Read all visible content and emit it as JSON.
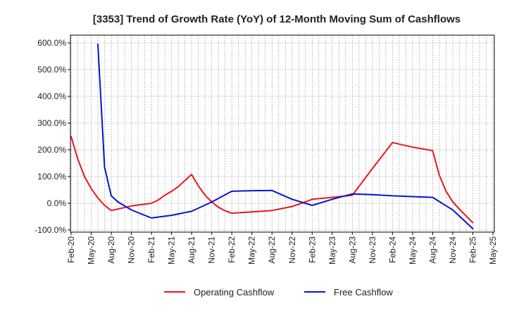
{
  "chart_data": {
    "type": "line",
    "title": "[3353]  Trend of Growth Rate (YoY) of 12-Month Moving Sum of Cashflows",
    "y_tick_labels": [
      "600.0%",
      "500.0%",
      "400.0%",
      "300.0%",
      "200.0%",
      "100.0%",
      "0.0%",
      "-100.0%"
    ],
    "x_tick_labels": [
      "Feb-20",
      "May-20",
      "Aug-20",
      "Nov-20",
      "Feb-21",
      "May-21",
      "Aug-21",
      "Nov-21",
      "Feb-22",
      "May-22",
      "Aug-22",
      "Nov-22",
      "Feb-23",
      "May-23",
      "Aug-23",
      "Nov-23",
      "Feb-24",
      "May-24",
      "Aug-24",
      "Nov-24",
      "Feb-25",
      "May-25"
    ],
    "ylim": [
      -100,
      600
    ],
    "grid": true,
    "legend_position": "bottom",
    "series": [
      {
        "name": "Operating Cashflow",
        "color": "#e8161b",
        "points": [
          [
            "Feb-20",
            250
          ],
          [
            "Mar-20",
            165
          ],
          [
            "Apr-20",
            100
          ],
          [
            "May-20",
            55
          ],
          [
            "Jun-20",
            20
          ],
          [
            "Jul-20",
            -8
          ],
          [
            "Aug-20",
            -27
          ],
          [
            "Nov-20",
            -10
          ],
          [
            "Feb-21",
            0
          ],
          [
            "Mar-21",
            12
          ],
          [
            "Apr-21",
            30
          ],
          [
            "May-21",
            45
          ],
          [
            "Jun-21",
            62
          ],
          [
            "Jul-21",
            85
          ],
          [
            "Aug-21",
            108
          ],
          [
            "Sep-21",
            65
          ],
          [
            "Oct-21",
            30
          ],
          [
            "Nov-21",
            5
          ],
          [
            "Dec-21",
            -15
          ],
          [
            "Jan-22",
            -28
          ],
          [
            "Feb-22",
            -37
          ],
          [
            "May-22",
            -32
          ],
          [
            "Aug-22",
            -27
          ],
          [
            "Nov-22",
            -12
          ],
          [
            "Jan-23",
            5
          ],
          [
            "Feb-23",
            15
          ],
          [
            "May-23",
            22
          ],
          [
            "Aug-23",
            30
          ],
          [
            "Nov-23",
            130
          ],
          [
            "Feb-24",
            227
          ],
          [
            "May-24",
            210
          ],
          [
            "Aug-24",
            197
          ],
          [
            "Sep-24",
            105
          ],
          [
            "Oct-24",
            45
          ],
          [
            "Nov-24",
            5
          ],
          [
            "Dec-24",
            -22
          ],
          [
            "Jan-25",
            -48
          ],
          [
            "Feb-25",
            -73
          ]
        ]
      },
      {
        "name": "Free Cashflow",
        "color": "#0a14cc",
        "points": [
          [
            "Jun-20",
            595
          ],
          [
            "Jul-20",
            135
          ],
          [
            "Aug-20",
            28
          ],
          [
            "Sep-20",
            5
          ],
          [
            "Nov-20",
            -25
          ],
          [
            "Feb-21",
            -55
          ],
          [
            "May-21",
            -45
          ],
          [
            "Aug-21",
            -30
          ],
          [
            "Nov-21",
            5
          ],
          [
            "Feb-22",
            45
          ],
          [
            "May-22",
            47
          ],
          [
            "Aug-22",
            48
          ],
          [
            "Nov-22",
            15
          ],
          [
            "Feb-23",
            -8
          ],
          [
            "May-23",
            15
          ],
          [
            "Aug-23",
            35
          ],
          [
            "Nov-23",
            32
          ],
          [
            "Feb-24",
            28
          ],
          [
            "May-24",
            25
          ],
          [
            "Aug-24",
            22
          ],
          [
            "Nov-24",
            -25
          ],
          [
            "Feb-25",
            -95
          ]
        ]
      }
    ]
  }
}
